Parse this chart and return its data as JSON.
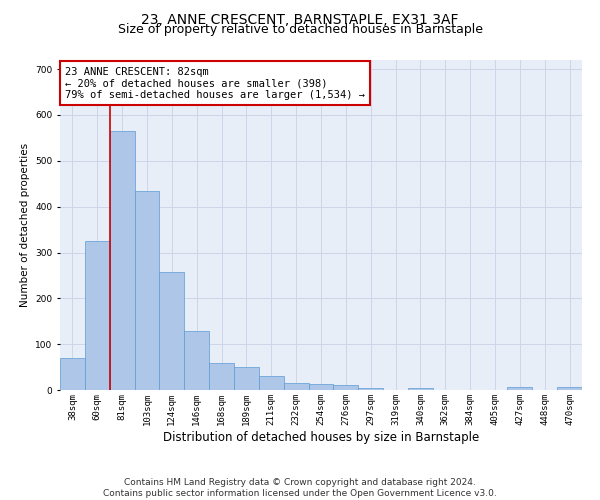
{
  "title": "23, ANNE CRESCENT, BARNSTAPLE, EX31 3AF",
  "subtitle": "Size of property relative to detached houses in Barnstaple",
  "xlabel": "Distribution of detached houses by size in Barnstaple",
  "ylabel": "Number of detached properties",
  "categories": [
    "38sqm",
    "60sqm",
    "81sqm",
    "103sqm",
    "124sqm",
    "146sqm",
    "168sqm",
    "189sqm",
    "211sqm",
    "232sqm",
    "254sqm",
    "276sqm",
    "297sqm",
    "319sqm",
    "340sqm",
    "362sqm",
    "384sqm",
    "405sqm",
    "427sqm",
    "448sqm",
    "470sqm"
  ],
  "values": [
    70,
    325,
    565,
    435,
    258,
    128,
    60,
    50,
    30,
    15,
    13,
    10,
    5,
    0,
    5,
    0,
    0,
    0,
    7,
    0,
    7
  ],
  "bar_color": "#aec6e8",
  "bar_edge_color": "#5b9bd5",
  "bar_edge_width": 0.5,
  "vline_color": "#cc0000",
  "annotation_text_line1": "23 ANNE CRESCENT: 82sqm",
  "annotation_text_line2": "← 20% of detached houses are smaller (398)",
  "annotation_text_line3": "79% of semi-detached houses are larger (1,534) →",
  "annotation_box_color": "#cc0000",
  "annotation_bg_color": "#ffffff",
  "ylim": [
    0,
    720
  ],
  "yticks": [
    0,
    100,
    200,
    300,
    400,
    500,
    600,
    700
  ],
  "grid_color": "#cdd6e8",
  "bg_color": "#e8eef8",
  "footer_line1": "Contains HM Land Registry data © Crown copyright and database right 2024.",
  "footer_line2": "Contains public sector information licensed under the Open Government Licence v3.0.",
  "title_fontsize": 10,
  "subtitle_fontsize": 9,
  "xlabel_fontsize": 8.5,
  "ylabel_fontsize": 7.5,
  "tick_fontsize": 6.5,
  "annotation_fontsize": 7.5,
  "footer_fontsize": 6.5
}
